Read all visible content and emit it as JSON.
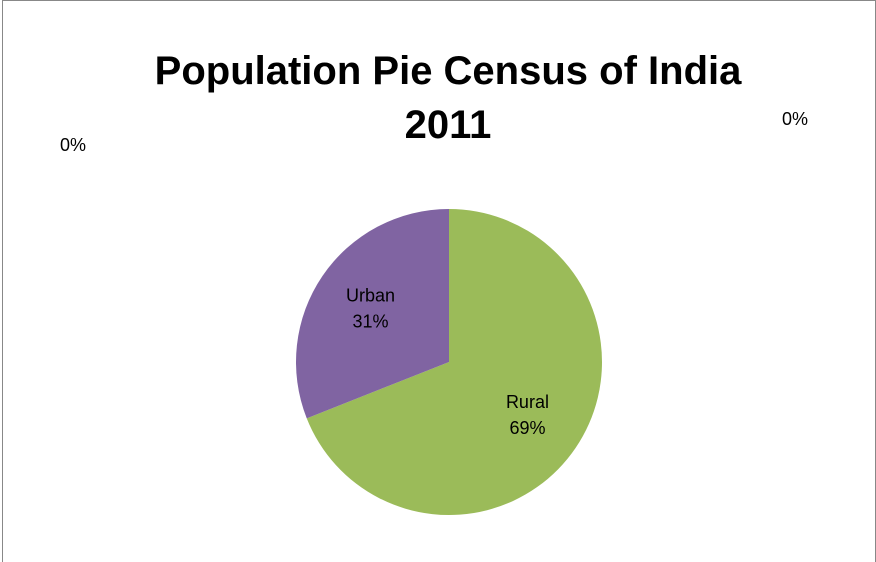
{
  "chart_data": {
    "type": "pie",
    "title": "Population Pie Census of India 2011",
    "categories": [
      null,
      "Rural",
      "Urban",
      null
    ],
    "values": [
      0,
      69,
      31,
      0
    ],
    "value_labels": [
      "0%",
      "69%",
      "31%",
      "0%"
    ],
    "colors": [
      "#4f81bd",
      "#9bbb59",
      "#8064a2",
      "#c0504d"
    ]
  }
}
